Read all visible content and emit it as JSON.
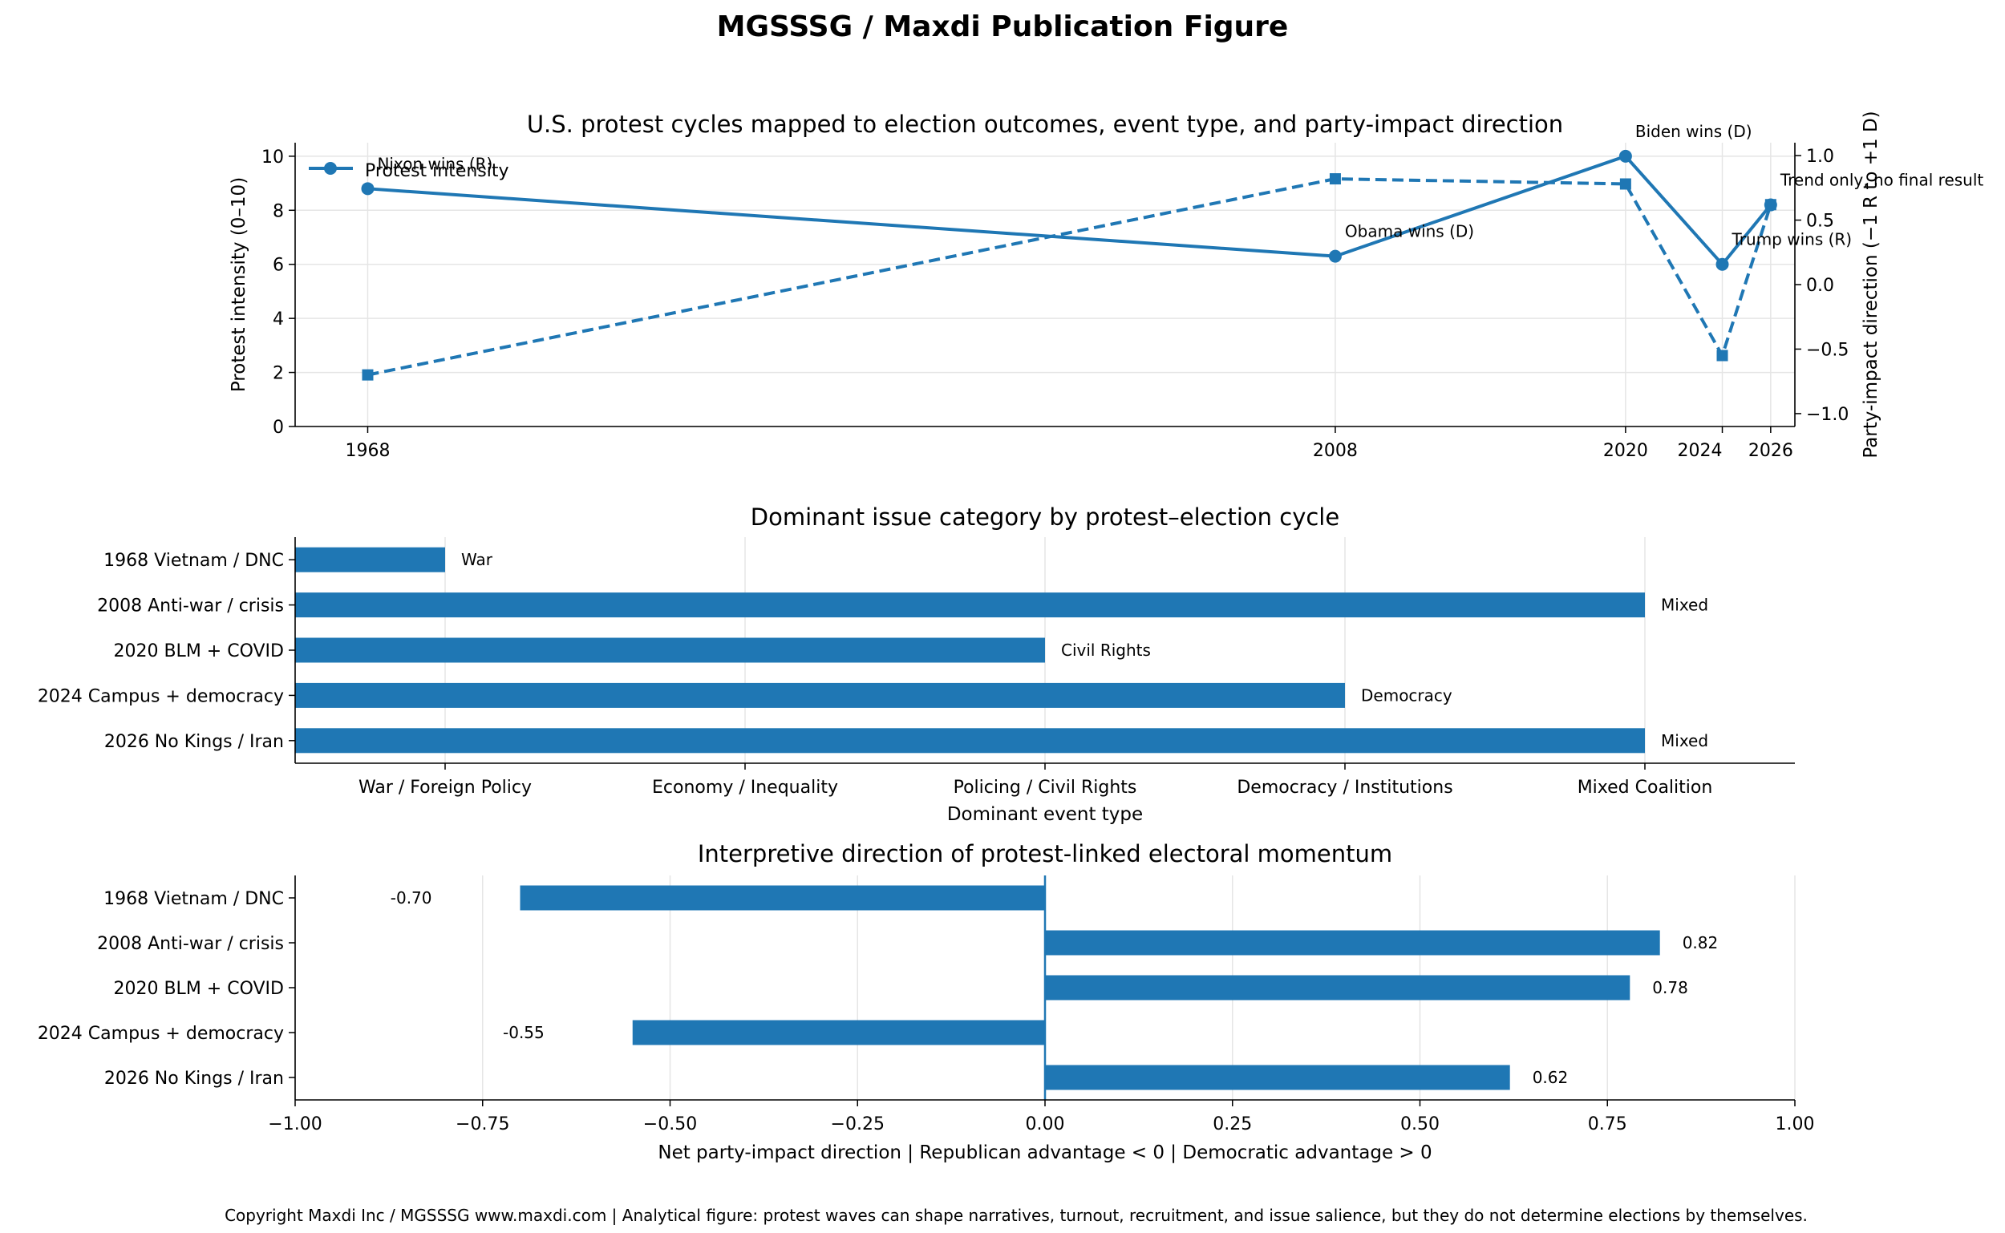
{
  "figure": {
    "title": "MGSSSG / Maxdi Publication Figure",
    "footer": "Copyright Maxdi Inc / MGSSSG   www.maxdi.com   |   Analytical figure: protest waves can shape narratives, turnout, recruitment, and issue salience, but they do not determine elections by themselves."
  },
  "colors": {
    "accent": "#1f77b4",
    "grid": "#e5e5e5",
    "axis": "#000000"
  },
  "chart_data": [
    {
      "type": "line",
      "title": "U.S. protest cycles mapped to election outcomes, event type, and party-impact direction",
      "xlabel": "",
      "ylabel": "Protest intensity (0–10)",
      "y2label": "Party-impact direction (−1 R to +1 D)",
      "x": [
        1968,
        2008,
        2020,
        2024,
        2026
      ],
      "x_tick_labels": [
        "1968",
        "2008",
        "2020",
        "2024",
        "2026"
      ],
      "xlim": [
        1965,
        2027
      ],
      "ylim": [
        0,
        10.5
      ],
      "y_ticks": [
        0,
        2,
        4,
        6,
        8,
        10
      ],
      "y2lim": [
        -1.1,
        1.1
      ],
      "y2_ticks": [
        -1.0,
        -0.5,
        0.0,
        0.5,
        1.0
      ],
      "y2_tick_labels": [
        "−1.0",
        "−0.5",
        "0.0",
        "0.5",
        "1.0"
      ],
      "series": [
        {
          "name": "Protest intensity",
          "axis": "left",
          "style": "solid",
          "marker": "circle",
          "values": [
            8.8,
            6.3,
            10.0,
            6.0,
            8.2
          ]
        },
        {
          "name": "Party-impact direction",
          "axis": "right",
          "style": "dashed",
          "marker": "square",
          "values": [
            -0.7,
            0.82,
            0.78,
            -0.55,
            0.62
          ]
        }
      ],
      "annotations": [
        "Nixon wins (R)",
        "Obama wins (D)",
        "Biden wins (D)",
        "Trump wins (R)",
        "Trend only, no final result"
      ],
      "legend": {
        "position": "top-left",
        "label": "Protest intensity"
      },
      "grid": true
    },
    {
      "type": "bar",
      "orientation": "horizontal",
      "title": "Dominant issue category by protest–election cycle",
      "xlabel": "Dominant event type",
      "categories": [
        "1968 Vietnam / DNC",
        "2008 Anti-war / crisis",
        "2020 BLM + COVID",
        "2024 Campus + democracy",
        "2026 No Kings / Iran"
      ],
      "values": [
        1,
        5,
        3,
        4,
        5
      ],
      "bar_labels": [
        "War",
        "Mixed",
        "Civil Rights",
        "Democracy",
        "Mixed"
      ],
      "xlim": [
        0.5,
        5.5
      ],
      "x_ticks": [
        1,
        2,
        3,
        4,
        5
      ],
      "x_tick_labels": [
        "War / Foreign Policy",
        "Economy / Inequality",
        "Policing / Civil Rights",
        "Democracy / Institutions",
        "Mixed Coalition"
      ],
      "grid": true
    },
    {
      "type": "bar",
      "orientation": "horizontal",
      "title": "Interpretive direction of protest-linked electoral momentum",
      "xlabel": "Net party-impact direction  |  Republican advantage < 0  |  Democratic advantage > 0",
      "categories": [
        "1968 Vietnam / DNC",
        "2008 Anti-war / crisis",
        "2020 BLM + COVID",
        "2024 Campus + democracy",
        "2026 No Kings / Iran"
      ],
      "values": [
        -0.7,
        0.82,
        0.78,
        -0.55,
        0.62
      ],
      "bar_labels": [
        "-0.70",
        "0.82",
        "0.78",
        "-0.55",
        "0.62"
      ],
      "xlim": [
        -1.0,
        1.0
      ],
      "x_ticks": [
        -1.0,
        -0.75,
        -0.5,
        -0.25,
        0.0,
        0.25,
        0.5,
        0.75,
        1.0
      ],
      "x_tick_labels": [
        "−1.00",
        "−0.75",
        "−0.50",
        "−0.25",
        "0.00",
        "0.25",
        "0.50",
        "0.75",
        "1.00"
      ],
      "grid": true
    }
  ]
}
